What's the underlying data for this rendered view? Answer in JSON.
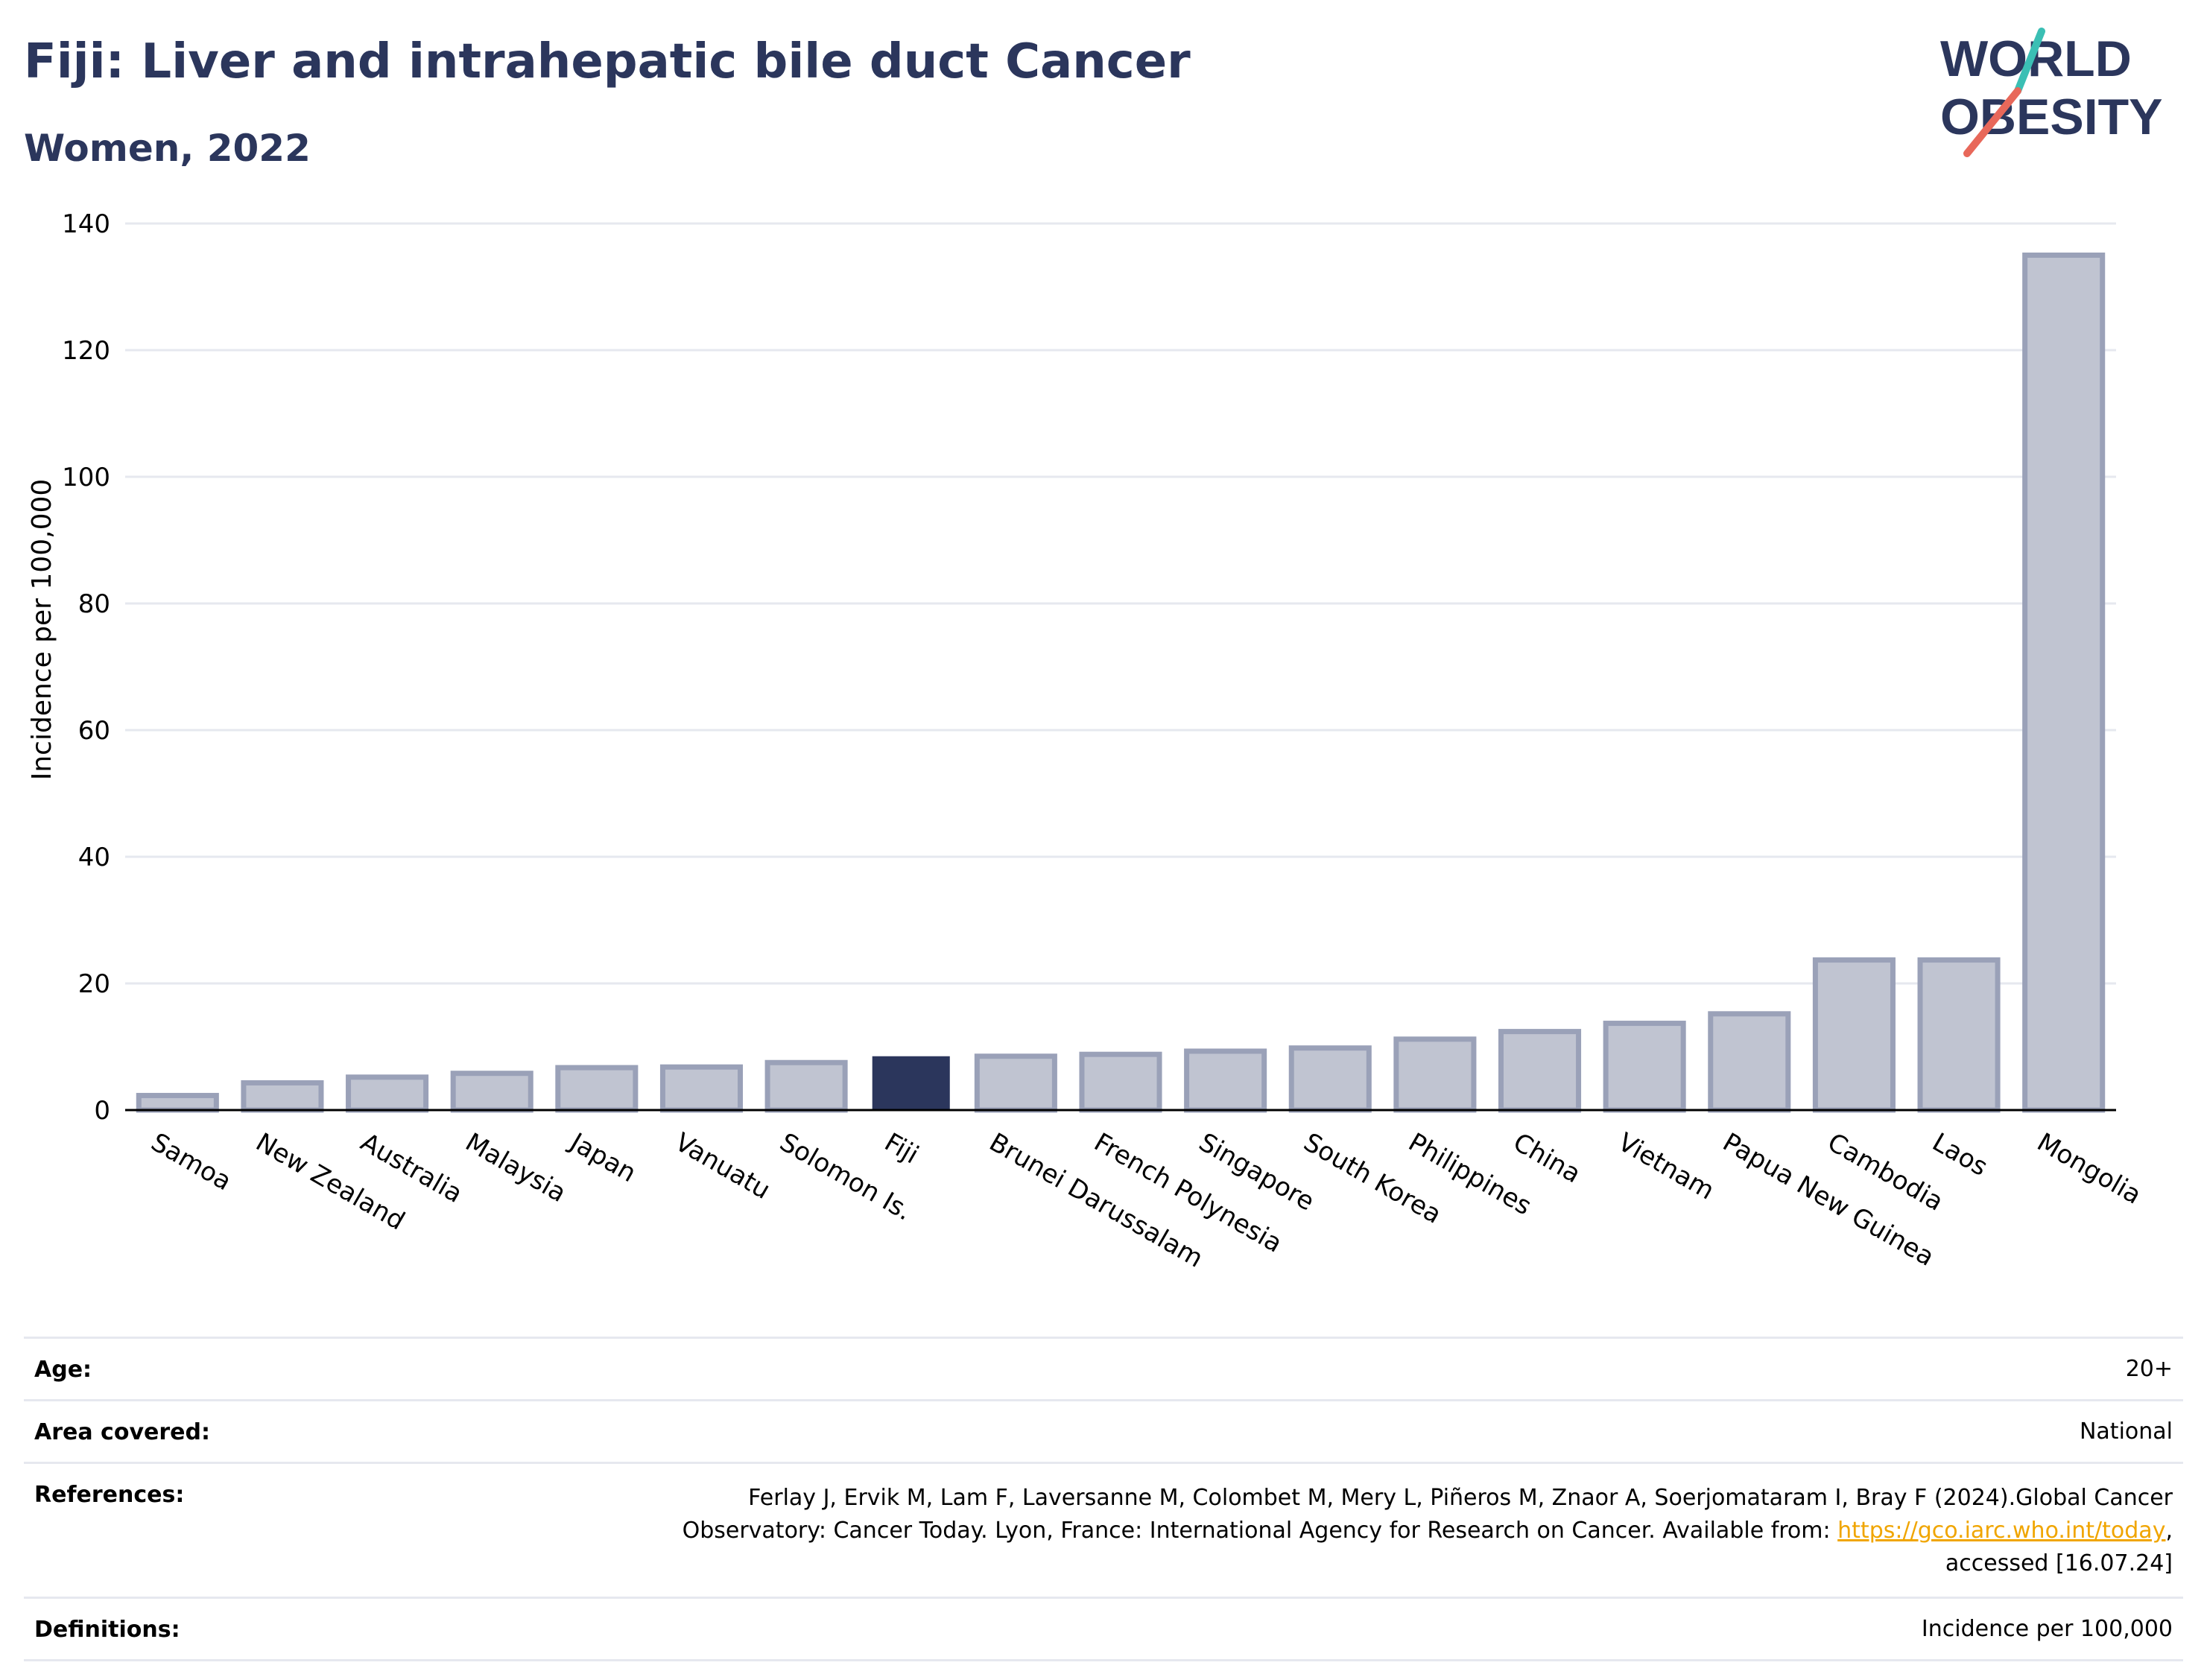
{
  "title": "Fiji: Liver and intrahepatic bile duct Cancer",
  "subtitle": "Women, 2022",
  "logo": {
    "line1": "WORLD",
    "line2": "OBESITY",
    "accent_teal": "#3bbfb4",
    "accent_red": "#e8685a",
    "text_color": "#2b365c"
  },
  "colors": {
    "highlight": "#2b365c",
    "bar_fill": "#c0c4d1",
    "bar_stroke": "#9aa1b8",
    "grid": "#e6e8ef",
    "axis": "#000000"
  },
  "chart_data": {
    "type": "bar",
    "title": "Fiji: Liver and intrahepatic bile duct Cancer",
    "subtitle": "Women, 2022",
    "xlabel": "",
    "ylabel": "Incidence per 100,000",
    "ylim": [
      0,
      140
    ],
    "yticks": [
      "0",
      "20",
      "40",
      "60",
      "80",
      "100",
      "120",
      "140"
    ],
    "grid": true,
    "highlight": "Fiji",
    "categories": [
      "Samoa",
      "New Zealand",
      "Australia",
      "Malaysia",
      "Japan",
      "Vanuatu",
      "Solomon Is.",
      "Fiji",
      "Brunei Darussalam",
      "French Polynesia",
      "Singapore",
      "South Korea",
      "Philippines",
      "China",
      "Vietnam",
      "Papua New Guinea",
      "Cambodia",
      "Laos",
      "Mongolia"
    ],
    "values": [
      2.3,
      4.3,
      5.2,
      5.8,
      6.7,
      6.8,
      7.5,
      8.5,
      8.5,
      8.8,
      9.3,
      9.8,
      11.2,
      12.4,
      13.7,
      15.2,
      23.7,
      23.7,
      135.0
    ]
  },
  "footer": {
    "age": {
      "label": "Age:",
      "value": "20+"
    },
    "area": {
      "label": "Area covered:",
      "value": "National"
    },
    "references": {
      "label": "References:",
      "line1": "Ferlay J, Ervik M, Lam F, Laversanne M, Colombet M, Mery L, Piñeros M, Znaor A, Soerjomataram I, Bray F (2024).Global Cancer",
      "line2": "Observatory: Cancer Today. Lyon, France: International Agency for Research on Cancer. Available from: ",
      "link": "https://gco.iarc.who.int/today",
      "line2_end": ",",
      "line3": "accessed [16.07.24]"
    },
    "definitions": {
      "label": "Definitions:",
      "value": "Incidence per 100,000"
    }
  }
}
